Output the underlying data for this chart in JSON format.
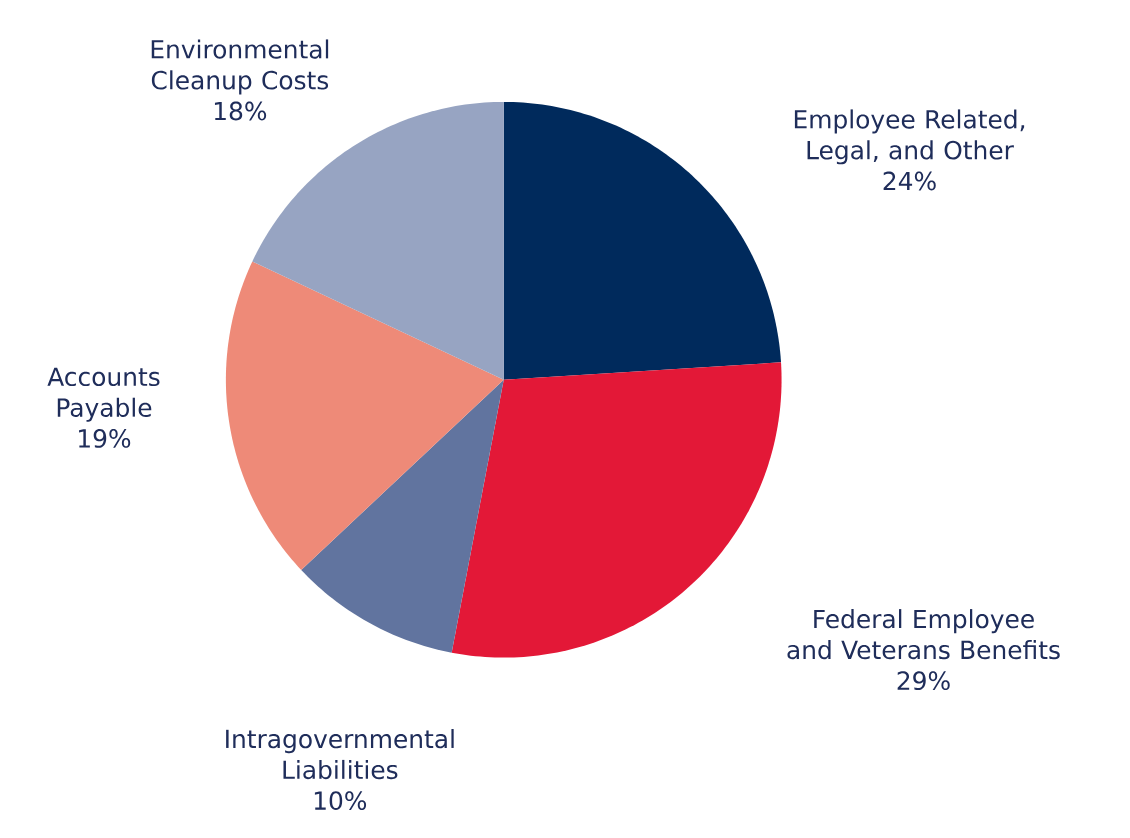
{
  "chart_data": {
    "type": "pie",
    "categories": [
      "Employee Related, Legal, and Other",
      "Federal Employee and Veterans Benefits",
      "Intragovernmental Liabilities",
      "Accounts Payable",
      "Environmental Cleanup Costs"
    ],
    "values": [
      24,
      29,
      10,
      19,
      18
    ],
    "value_labels": [
      "24%",
      "29%",
      "10%",
      "19%",
      "18%"
    ],
    "colors": [
      "#002a5c",
      "#e31837",
      "#61749f",
      "#ee8a78",
      "#97a4c2"
    ]
  }
}
